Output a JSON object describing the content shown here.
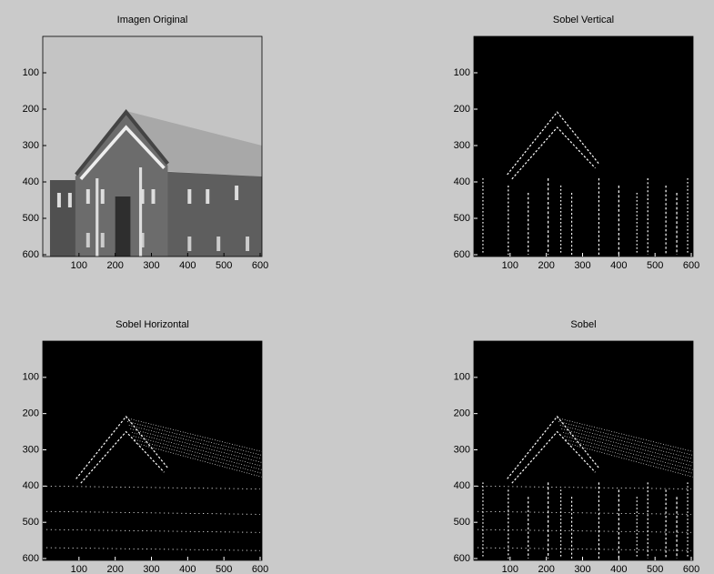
{
  "chart_data": [
    {
      "type": "image",
      "title": "Imagen Original",
      "colormap": "gray",
      "xlim": [
        0,
        605
      ],
      "ylim": [
        605,
        0
      ],
      "xticks": [
        100,
        200,
        300,
        400,
        500,
        600
      ],
      "yticks": [
        100,
        200,
        300,
        400,
        500,
        600
      ]
    },
    {
      "type": "image",
      "title": "Sobel Vertical",
      "colormap": "binary",
      "xlim": [
        0,
        605
      ],
      "ylim": [
        605,
        0
      ],
      "xticks": [
        100,
        200,
        300,
        400,
        500,
        600
      ],
      "yticks": [
        100,
        200,
        300,
        400,
        500,
        600
      ]
    },
    {
      "type": "image",
      "title": "Sobel Horizontal",
      "colormap": "binary",
      "xlim": [
        0,
        605
      ],
      "ylim": [
        605,
        0
      ],
      "xticks": [
        100,
        200,
        300,
        400,
        500,
        600
      ],
      "yticks": [
        100,
        200,
        300,
        400,
        500,
        600
      ]
    },
    {
      "type": "image",
      "title": "Sobel",
      "colormap": "binary",
      "xlim": [
        0,
        605
      ],
      "ylim": [
        605,
        0
      ],
      "xticks": [
        100,
        200,
        300,
        400,
        500,
        600
      ],
      "yticks": [
        100,
        200,
        300,
        400,
        500,
        600
      ]
    }
  ]
}
